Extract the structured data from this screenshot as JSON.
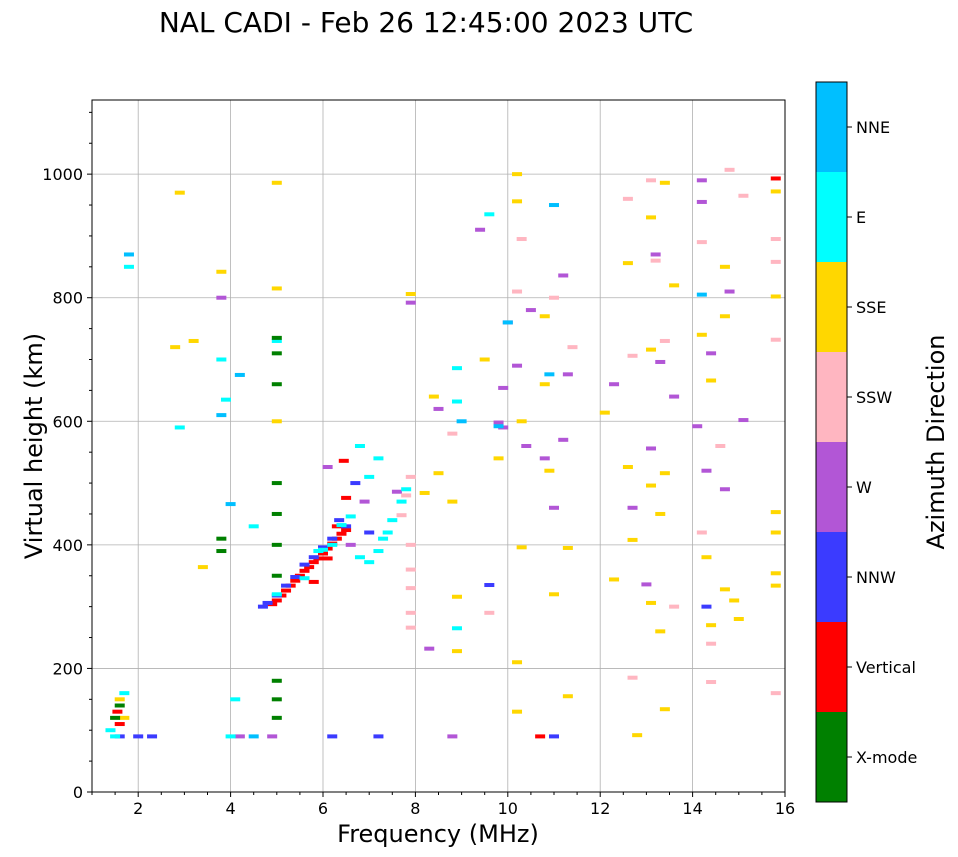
{
  "chart_data": {
    "type": "scatter",
    "title": "NAL CADI - Feb 26 12:45:00 2023 UTC",
    "xlabel": "Frequency (MHz)",
    "ylabel": "Virtual height (km)",
    "xlim": [
      1,
      16
    ],
    "ylim": [
      0,
      1120
    ],
    "xticks": [
      2,
      4,
      6,
      8,
      10,
      12,
      14,
      16
    ],
    "yticks": [
      0,
      200,
      400,
      600,
      800,
      1000
    ],
    "grid": true,
    "colorbar": {
      "label": "Azimuth Direction",
      "categories": [
        {
          "name": "X-mode",
          "color": "#008000"
        },
        {
          "name": "Vertical",
          "color": "#ff0000"
        },
        {
          "name": "NNW",
          "color": "#3b3bff"
        },
        {
          "name": "W",
          "color": "#b256d6"
        },
        {
          "name": "SSW",
          "color": "#ffb6c1"
        },
        {
          "name": "SSE",
          "color": "#ffd700"
        },
        {
          "name": "E",
          "color": "#00ffff"
        },
        {
          "name": "NNE",
          "color": "#00bfff"
        }
      ]
    },
    "series": [
      {
        "name": "Vertical",
        "points": [
          [
            4.9,
            304
          ],
          [
            5.0,
            310
          ],
          [
            5.1,
            318
          ],
          [
            5.2,
            326
          ],
          [
            5.3,
            334
          ],
          [
            5.4,
            342
          ],
          [
            5.5,
            350
          ],
          [
            5.6,
            358
          ],
          [
            5.7,
            364
          ],
          [
            5.8,
            372
          ],
          [
            5.9,
            378
          ],
          [
            6.0,
            386
          ],
          [
            6.1,
            394
          ],
          [
            6.2,
            402
          ],
          [
            6.3,
            410
          ],
          [
            6.4,
            418
          ],
          [
            6.5,
            424
          ],
          [
            6.45,
            536
          ],
          [
            6.5,
            476
          ],
          [
            5.8,
            340
          ],
          [
            6.1,
            378
          ],
          [
            6.3,
            430
          ],
          [
            1.6,
            110
          ],
          [
            1.55,
            130
          ],
          [
            10.7,
            90
          ],
          [
            15.8,
            993
          ]
        ]
      },
      {
        "name": "NNW",
        "points": [
          [
            4.7,
            300
          ],
          [
            4.8,
            306
          ],
          [
            5.0,
            318
          ],
          [
            5.2,
            334
          ],
          [
            5.4,
            348
          ],
          [
            5.6,
            368
          ],
          [
            5.8,
            380
          ],
          [
            6.0,
            396
          ],
          [
            6.2,
            410
          ],
          [
            6.35,
            440
          ],
          [
            6.5,
            430
          ],
          [
            6.7,
            500
          ],
          [
            7.0,
            420
          ],
          [
            1.6,
            90
          ],
          [
            2.3,
            90
          ],
          [
            2.0,
            90
          ],
          [
            6.2,
            90
          ],
          [
            7.2,
            90
          ],
          [
            9.6,
            335
          ],
          [
            11.0,
            90
          ],
          [
            14.3,
            300
          ]
        ]
      },
      {
        "name": "W",
        "points": [
          [
            6.1,
            526
          ],
          [
            6.6,
            400
          ],
          [
            6.9,
            470
          ],
          [
            7.6,
            486
          ],
          [
            7.9,
            792
          ],
          [
            8.3,
            232
          ],
          [
            8.5,
            620
          ],
          [
            9.4,
            910
          ],
          [
            9.8,
            598
          ],
          [
            9.9,
            654
          ],
          [
            9.9,
            590
          ],
          [
            10.0,
            760
          ],
          [
            10.2,
            690
          ],
          [
            10.4,
            560
          ],
          [
            10.5,
            780
          ],
          [
            10.8,
            540
          ],
          [
            11.0,
            460
          ],
          [
            11.2,
            836
          ],
          [
            11.2,
            570
          ],
          [
            11.3,
            676
          ],
          [
            12.3,
            660
          ],
          [
            12.7,
            460
          ],
          [
            13.0,
            336
          ],
          [
            13.1,
            556
          ],
          [
            13.2,
            870
          ],
          [
            13.3,
            696
          ],
          [
            13.6,
            640
          ],
          [
            14.1,
            592
          ],
          [
            14.2,
            990
          ],
          [
            14.2,
            955
          ],
          [
            14.3,
            520
          ],
          [
            14.4,
            710
          ],
          [
            14.7,
            490
          ],
          [
            14.8,
            810
          ],
          [
            15.1,
            602
          ],
          [
            3.8,
            800
          ],
          [
            4.2,
            90
          ],
          [
            4.9,
            90
          ],
          [
            8.8,
            90
          ]
        ]
      },
      {
        "name": "SSW",
        "points": [
          [
            7.7,
            448
          ],
          [
            7.9,
            510
          ],
          [
            7.8,
            480
          ],
          [
            7.9,
            400
          ],
          [
            7.9,
            360
          ],
          [
            7.9,
            330
          ],
          [
            7.9,
            290
          ],
          [
            7.9,
            266
          ],
          [
            8.8,
            580
          ],
          [
            9.6,
            290
          ],
          [
            10.2,
            810
          ],
          [
            10.3,
            895
          ],
          [
            11.0,
            800
          ],
          [
            11.4,
            720
          ],
          [
            12.6,
            960
          ],
          [
            12.7,
            706
          ],
          [
            12.7,
            185
          ],
          [
            13.1,
            990
          ],
          [
            13.2,
            860
          ],
          [
            13.4,
            730
          ],
          [
            13.6,
            300
          ],
          [
            14.2,
            890
          ],
          [
            14.2,
            420
          ],
          [
            14.4,
            178
          ],
          [
            14.4,
            240
          ],
          [
            14.6,
            560
          ],
          [
            14.8,
            1007
          ],
          [
            15.1,
            965
          ],
          [
            15.8,
            895
          ],
          [
            15.8,
            858
          ],
          [
            15.8,
            732
          ],
          [
            15.8,
            160
          ]
        ]
      },
      {
        "name": "SSE",
        "points": [
          [
            2.9,
            970
          ],
          [
            3.4,
            364
          ],
          [
            3.8,
            842
          ],
          [
            5.0,
            986
          ],
          [
            5.0,
            815
          ],
          [
            5.0,
            600
          ],
          [
            7.9,
            806
          ],
          [
            8.2,
            484
          ],
          [
            8.4,
            640
          ],
          [
            8.5,
            516
          ],
          [
            8.8,
            470
          ],
          [
            8.9,
            316
          ],
          [
            8.9,
            228
          ],
          [
            9.5,
            700
          ],
          [
            9.8,
            540
          ],
          [
            10.2,
            1000
          ],
          [
            10.2,
            956
          ],
          [
            10.3,
            600
          ],
          [
            10.3,
            396
          ],
          [
            10.2,
            210
          ],
          [
            10.2,
            130
          ],
          [
            10.8,
            770
          ],
          [
            10.8,
            660
          ],
          [
            10.9,
            520
          ],
          [
            11.0,
            320
          ],
          [
            11.3,
            395
          ],
          [
            11.3,
            155
          ],
          [
            12.1,
            614
          ],
          [
            12.3,
            344
          ],
          [
            12.6,
            856
          ],
          [
            12.6,
            526
          ],
          [
            12.7,
            408
          ],
          [
            12.8,
            92
          ],
          [
            13.1,
            930
          ],
          [
            13.1,
            716
          ],
          [
            13.1,
            496
          ],
          [
            13.1,
            306
          ],
          [
            13.3,
            450
          ],
          [
            13.3,
            260
          ],
          [
            13.4,
            986
          ],
          [
            13.4,
            516
          ],
          [
            13.4,
            134
          ],
          [
            13.6,
            820
          ],
          [
            14.2,
            740
          ],
          [
            14.3,
            380
          ],
          [
            14.4,
            666
          ],
          [
            14.4,
            270
          ],
          [
            14.7,
            850
          ],
          [
            14.7,
            770
          ],
          [
            14.7,
            328
          ],
          [
            14.9,
            310
          ],
          [
            15.0,
            280
          ],
          [
            15.8,
            972
          ],
          [
            15.8,
            802
          ],
          [
            15.8,
            453
          ],
          [
            15.8,
            420
          ],
          [
            15.8,
            354
          ],
          [
            15.8,
            334
          ],
          [
            1.6,
            150
          ],
          [
            1.7,
            120
          ],
          [
            2.8,
            720
          ],
          [
            3.2,
            730
          ]
        ]
      },
      {
        "name": "E",
        "points": [
          [
            5.0,
            320
          ],
          [
            5.6,
            346
          ],
          [
            5.9,
            390
          ],
          [
            6.0,
            392
          ],
          [
            6.2,
            400
          ],
          [
            6.4,
            432
          ],
          [
            6.6,
            446
          ],
          [
            6.8,
            380
          ],
          [
            7.0,
            372
          ],
          [
            7.2,
            390
          ],
          [
            7.3,
            410
          ],
          [
            7.4,
            420
          ],
          [
            7.5,
            440
          ],
          [
            7.7,
            470
          ],
          [
            7.8,
            490
          ],
          [
            6.8,
            560
          ],
          [
            7.0,
            510
          ],
          [
            7.2,
            540
          ],
          [
            1.8,
            850
          ],
          [
            2.9,
            590
          ],
          [
            3.8,
            700
          ],
          [
            3.9,
            635
          ],
          [
            4.5,
            430
          ],
          [
            5.0,
            730
          ],
          [
            8.9,
            686
          ],
          [
            8.9,
            632
          ],
          [
            8.9,
            265
          ],
          [
            9.6,
            935
          ],
          [
            1.4,
            100
          ],
          [
            1.5,
            90
          ],
          [
            1.7,
            160
          ],
          [
            4.1,
            150
          ],
          [
            4.0,
            90
          ]
        ]
      },
      {
        "name": "NNE",
        "points": [
          [
            1.8,
            870
          ],
          [
            3.8,
            610
          ],
          [
            4.2,
            675
          ],
          [
            4.0,
            466
          ],
          [
            10.0,
            760
          ],
          [
            10.9,
            676
          ],
          [
            9.8,
            592
          ],
          [
            11.0,
            950
          ],
          [
            14.2,
            805
          ],
          [
            4.5,
            90
          ],
          [
            9.0,
            600
          ]
        ]
      },
      {
        "name": "X-mode",
        "points": [
          [
            5.0,
            735
          ],
          [
            5.0,
            710
          ],
          [
            5.0,
            660
          ],
          [
            5.0,
            500
          ],
          [
            5.0,
            450
          ],
          [
            5.0,
            400
          ],
          [
            5.0,
            350
          ],
          [
            5.0,
            180
          ],
          [
            5.0,
            150
          ],
          [
            5.0,
            120
          ],
          [
            3.8,
            410
          ],
          [
            3.8,
            390
          ],
          [
            1.6,
            140
          ],
          [
            1.5,
            120
          ]
        ]
      }
    ]
  }
}
